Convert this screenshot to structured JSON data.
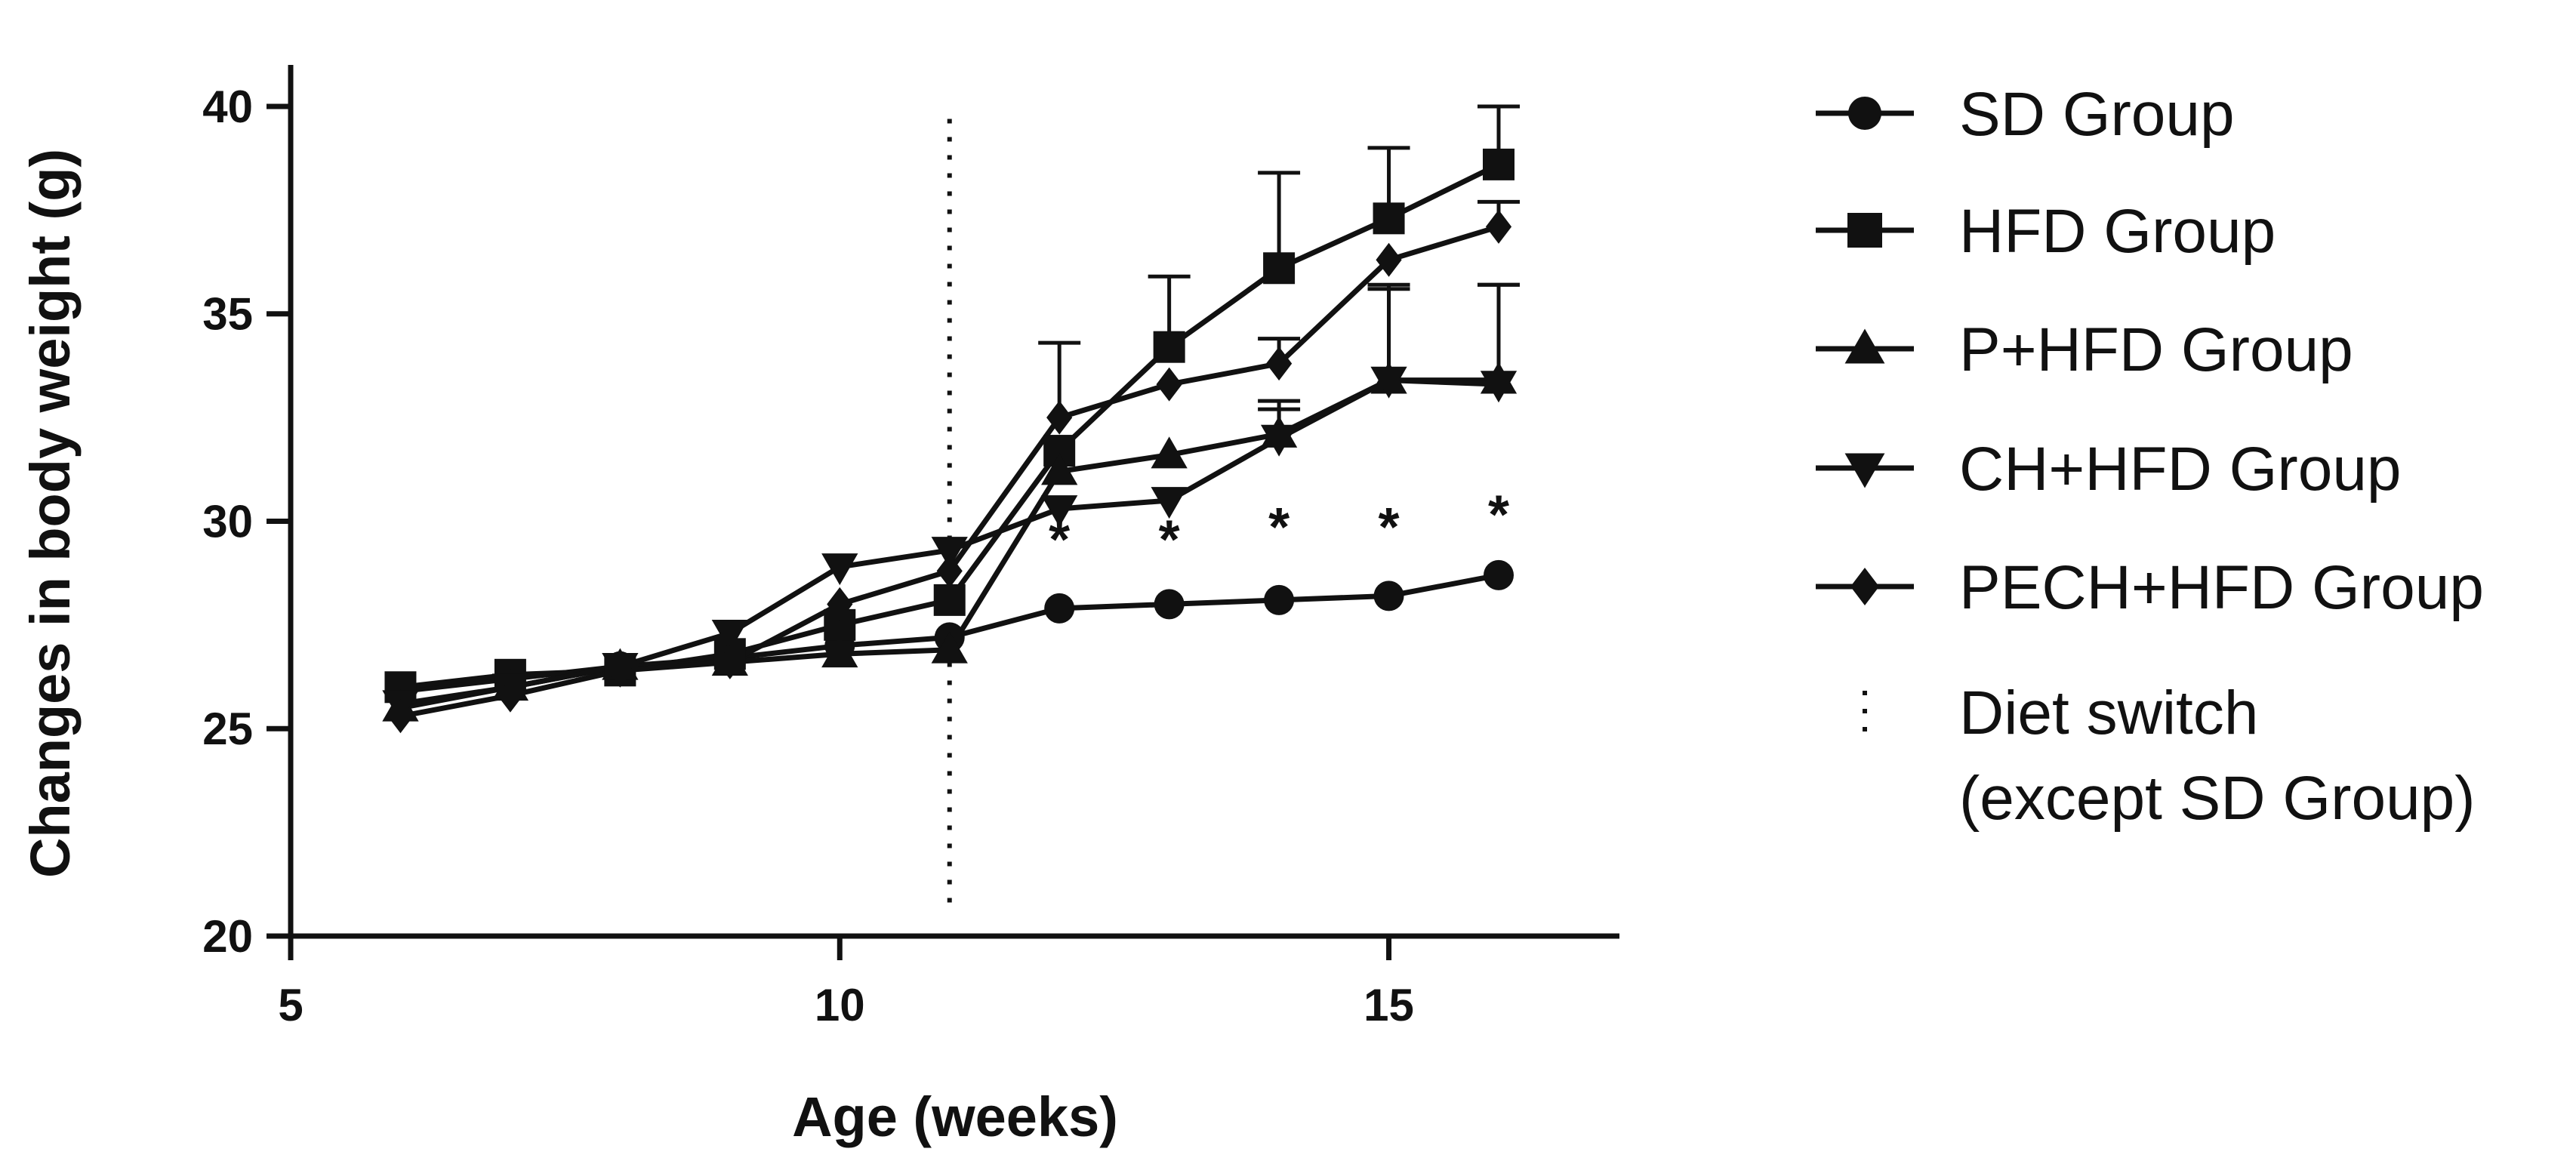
{
  "chart_data": {
    "type": "line",
    "title": "",
    "xlabel": "Age  (weeks)",
    "ylabel": "Changes in body weight  (g)",
    "xlim": [
      5,
      17.1
    ],
    "ylim": [
      20,
      41
    ],
    "xticks": [
      5,
      10,
      15
    ],
    "yticks": [
      20,
      25,
      30,
      35,
      40
    ],
    "x": [
      6,
      7,
      8,
      9,
      10,
      11,
      12,
      13,
      14,
      15,
      16
    ],
    "series": [
      {
        "name": "SD Group",
        "marker": "circle",
        "values": [
          25.9,
          26.2,
          26.5,
          26.7,
          27.0,
          27.2,
          27.9,
          28.0,
          28.1,
          28.2,
          28.7
        ],
        "errors": [
          0,
          0,
          0,
          0,
          0,
          0,
          0,
          0,
          0,
          0,
          0
        ]
      },
      {
        "name": "HFD Group",
        "marker": "square",
        "values": [
          26.0,
          26.3,
          26.4,
          26.8,
          27.5,
          28.1,
          31.7,
          34.2,
          36.1,
          37.3,
          38.6
        ],
        "errors": [
          0,
          0,
          0,
          0,
          0,
          0,
          0,
          1.7,
          2.3,
          1.7,
          1.4
        ]
      },
      {
        "name": "P+HFD Group",
        "marker": "triangle-up",
        "values": [
          25.5,
          26.0,
          26.5,
          26.6,
          26.8,
          26.9,
          31.2,
          31.6,
          32.1,
          33.4,
          33.4
        ],
        "errors": [
          0,
          0,
          0,
          0,
          0,
          0,
          0,
          0,
          0.8,
          2.2,
          2.3
        ]
      },
      {
        "name": "CH+HFD Group",
        "marker": "triangle-down",
        "values": [
          25.6,
          26.0,
          26.5,
          27.3,
          28.9,
          29.3,
          30.3,
          30.5,
          32.0,
          33.4,
          33.3
        ],
        "errors": [
          0,
          0,
          0,
          0,
          0,
          0,
          0,
          0,
          0.7,
          2.3,
          2.4
        ]
      },
      {
        "name": "PECH+HFD Group",
        "marker": "diamond",
        "values": [
          25.3,
          25.8,
          26.4,
          26.6,
          28.0,
          28.8,
          32.5,
          33.3,
          33.8,
          36.3,
          37.1
        ],
        "errors": [
          0,
          0,
          0,
          0,
          0,
          0,
          1.8,
          0,
          0.6,
          0,
          0.6
        ]
      }
    ],
    "significance": {
      "symbol": "*",
      "x": [
        12,
        13,
        14,
        15,
        16
      ],
      "y": [
        29.8,
        29.8,
        30.1,
        30.1,
        30.4
      ]
    },
    "annotations": [
      {
        "type": "vertical-dotted-line",
        "x": 11,
        "y_range": [
          20.8,
          39.7
        ],
        "label": "Diet switch\n(except SD Group)"
      }
    ],
    "legend": {
      "position": "right",
      "entries": [
        "SD Group",
        "HFD Group",
        "P+HFD Group",
        "CH+HFD Group",
        "PECH+HFD Group"
      ],
      "diet_switch_line1": "Diet switch",
      "diet_switch_line2": "(except SD Group)"
    },
    "grid": false
  }
}
